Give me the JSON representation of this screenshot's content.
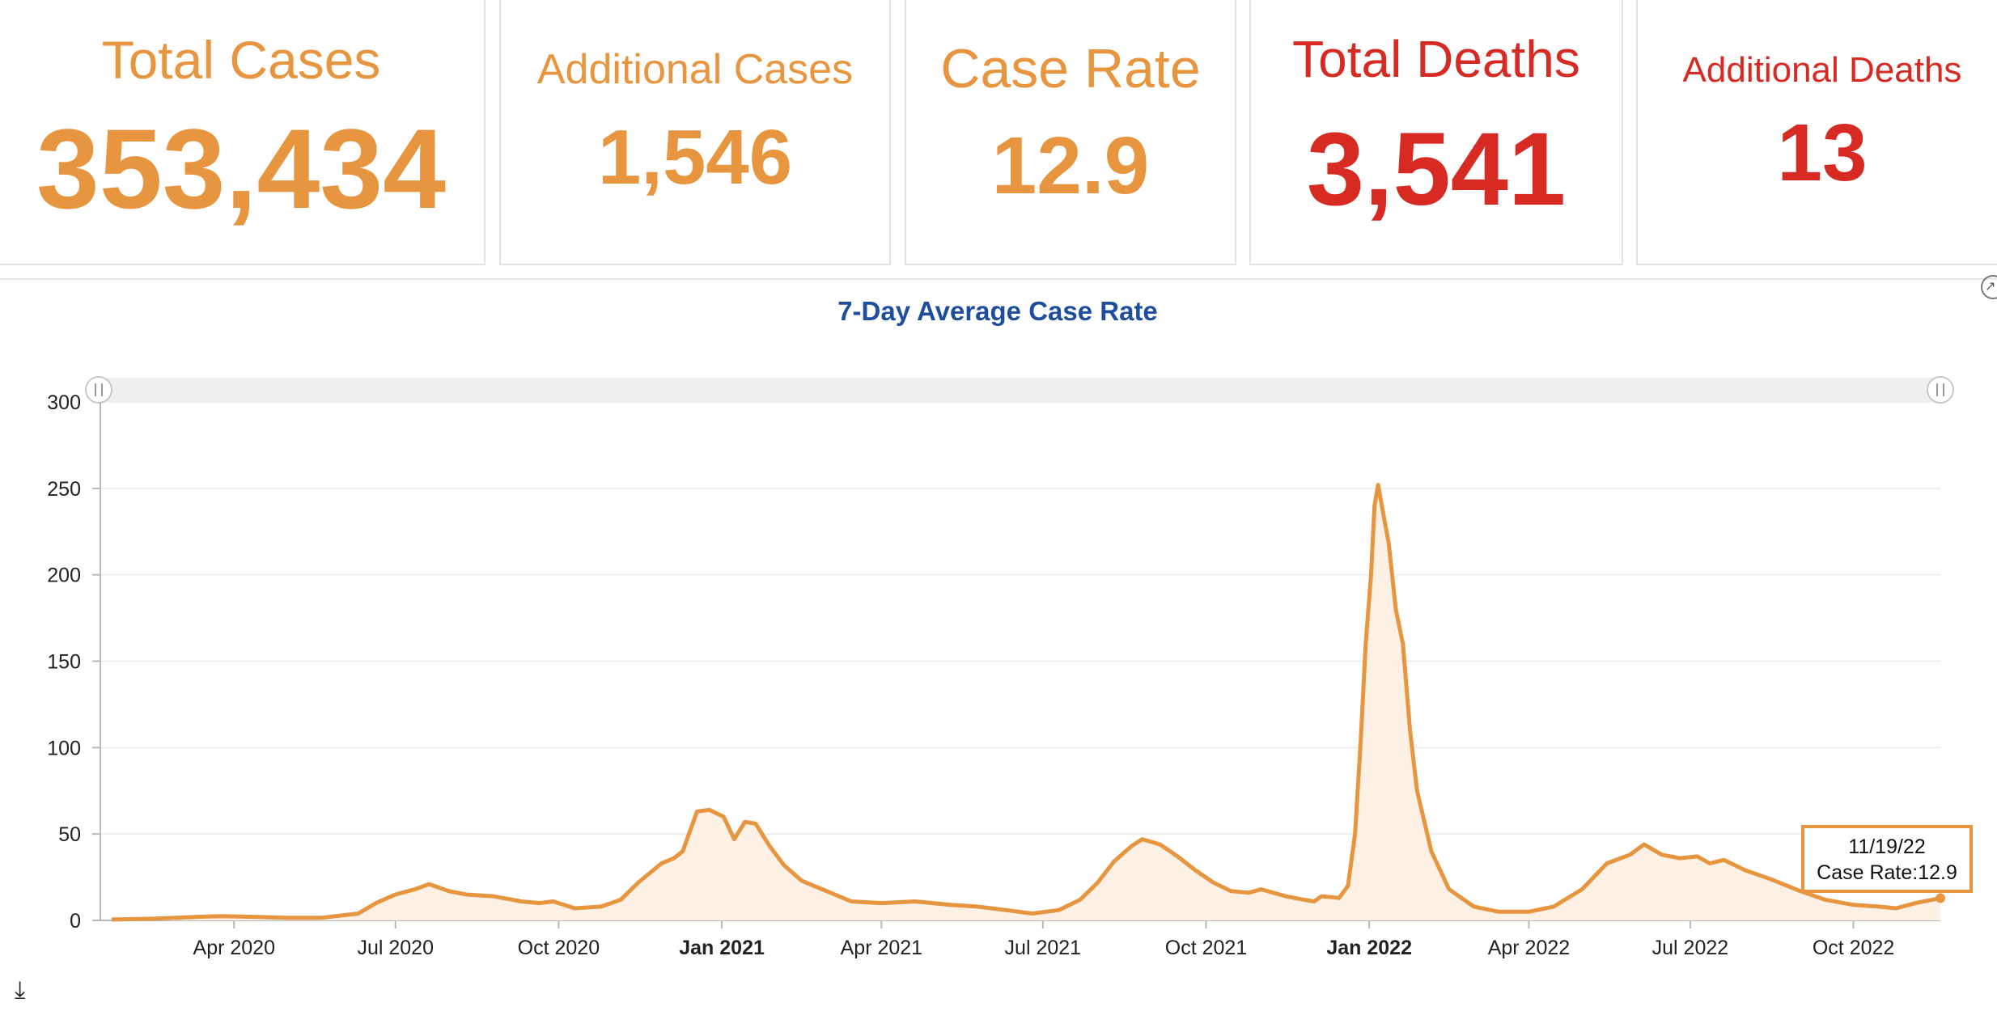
{
  "stats": [
    {
      "title": "Total Cases",
      "value": "353,434"
    },
    {
      "title": "Additional Cases",
      "value": "1,546"
    },
    {
      "title": "Case Rate",
      "value": "12.9"
    },
    {
      "title": "Total Deaths",
      "value": "3,541"
    },
    {
      "title": "Additional Deaths",
      "value": "13"
    }
  ],
  "colors": {
    "case_orange": "#e8953f",
    "death_red": "#d62a22",
    "chart_title_blue": "#1f4e9c",
    "area_fill": "#fdf1e6"
  },
  "icons": {
    "expand": "expand-icon",
    "download": "download-icon",
    "handle": "range-handle-icon"
  },
  "chart_data": {
    "type": "area",
    "title": "7-Day Average Case Rate",
    "xlabel": "",
    "ylabel": "",
    "ylim": [
      0,
      300
    ],
    "yticks": [
      0,
      50,
      100,
      150,
      200,
      250,
      300
    ],
    "x_range": [
      "2020-01-23",
      "2022-11-19"
    ],
    "xticks": [
      {
        "date": "2020-04-01",
        "label": "Apr 2020",
        "bold": false
      },
      {
        "date": "2020-07-01",
        "label": "Jul 2020",
        "bold": false
      },
      {
        "date": "2020-10-01",
        "label": "Oct 2020",
        "bold": false
      },
      {
        "date": "2021-01-01",
        "label": "Jan 2021",
        "bold": true
      },
      {
        "date": "2021-04-01",
        "label": "Apr 2021",
        "bold": false
      },
      {
        "date": "2021-07-01",
        "label": "Jul 2021",
        "bold": false
      },
      {
        "date": "2021-10-01",
        "label": "Oct 2021",
        "bold": false
      },
      {
        "date": "2022-01-01",
        "label": "Jan 2022",
        "bold": true
      },
      {
        "date": "2022-04-01",
        "label": "Apr 2022",
        "bold": false
      },
      {
        "date": "2022-07-01",
        "label": "Jul 2022",
        "bold": false
      },
      {
        "date": "2022-10-01",
        "label": "Oct 2022",
        "bold": false
      }
    ],
    "grid": true,
    "legend": "none",
    "series": [
      {
        "points": [
          [
            "2020-01-23",
            0.5
          ],
          [
            "2020-02-15",
            1
          ],
          [
            "2020-03-10",
            2
          ],
          [
            "2020-03-25",
            2.5
          ],
          [
            "2020-04-15",
            2
          ],
          [
            "2020-05-01",
            1.5
          ],
          [
            "2020-05-20",
            1.5
          ],
          [
            "2020-06-10",
            4
          ],
          [
            "2020-06-20",
            10
          ],
          [
            "2020-07-01",
            15
          ],
          [
            "2020-07-12",
            18
          ],
          [
            "2020-07-20",
            21
          ],
          [
            "2020-07-31",
            17
          ],
          [
            "2020-08-10",
            15
          ],
          [
            "2020-08-25",
            14
          ],
          [
            "2020-09-10",
            11
          ],
          [
            "2020-09-20",
            10
          ],
          [
            "2020-09-28",
            11
          ],
          [
            "2020-10-10",
            7
          ],
          [
            "2020-10-25",
            8
          ],
          [
            "2020-11-05",
            12
          ],
          [
            "2020-11-15",
            22
          ],
          [
            "2020-11-28",
            33
          ],
          [
            "2020-12-05",
            36
          ],
          [
            "2020-12-10",
            40
          ],
          [
            "2020-12-18",
            63
          ],
          [
            "2020-12-25",
            64
          ],
          [
            "2021-01-02",
            60
          ],
          [
            "2021-01-08",
            47
          ],
          [
            "2021-01-14",
            57
          ],
          [
            "2021-01-20",
            56
          ],
          [
            "2021-01-28",
            43
          ],
          [
            "2021-02-05",
            32
          ],
          [
            "2021-02-15",
            23
          ],
          [
            "2021-03-01",
            17
          ],
          [
            "2021-03-15",
            11
          ],
          [
            "2021-04-01",
            10
          ],
          [
            "2021-04-20",
            11
          ],
          [
            "2021-05-10",
            9
          ],
          [
            "2021-05-25",
            8
          ],
          [
            "2021-06-10",
            6
          ],
          [
            "2021-06-25",
            4
          ],
          [
            "2021-07-10",
            6
          ],
          [
            "2021-07-22",
            12
          ],
          [
            "2021-08-01",
            22
          ],
          [
            "2021-08-10",
            34
          ],
          [
            "2021-08-20",
            43
          ],
          [
            "2021-08-26",
            47
          ],
          [
            "2021-09-05",
            44
          ],
          [
            "2021-09-15",
            37
          ],
          [
            "2021-09-25",
            29
          ],
          [
            "2021-10-05",
            22
          ],
          [
            "2021-10-15",
            17
          ],
          [
            "2021-10-25",
            16
          ],
          [
            "2021-11-01",
            18
          ],
          [
            "2021-11-15",
            14
          ],
          [
            "2021-11-25",
            12
          ],
          [
            "2021-12-01",
            11
          ],
          [
            "2021-12-05",
            14
          ],
          [
            "2021-12-15",
            13
          ],
          [
            "2021-12-20",
            20
          ],
          [
            "2021-12-24",
            50
          ],
          [
            "2021-12-27",
            100
          ],
          [
            "2021-12-30",
            160
          ],
          [
            "2022-01-02",
            200
          ],
          [
            "2022-01-04",
            240
          ],
          [
            "2022-01-06",
            252
          ],
          [
            "2022-01-09",
            235
          ],
          [
            "2022-01-12",
            218
          ],
          [
            "2022-01-16",
            180
          ],
          [
            "2022-01-20",
            160
          ],
          [
            "2022-01-24",
            110
          ],
          [
            "2022-01-28",
            75
          ],
          [
            "2022-02-05",
            40
          ],
          [
            "2022-02-15",
            18
          ],
          [
            "2022-03-01",
            8
          ],
          [
            "2022-03-15",
            5
          ],
          [
            "2022-04-01",
            5
          ],
          [
            "2022-04-15",
            8
          ],
          [
            "2022-05-01",
            18
          ],
          [
            "2022-05-15",
            33
          ],
          [
            "2022-05-28",
            38
          ],
          [
            "2022-06-05",
            44
          ],
          [
            "2022-06-15",
            38
          ],
          [
            "2022-06-25",
            36
          ],
          [
            "2022-07-05",
            37
          ],
          [
            "2022-07-12",
            33
          ],
          [
            "2022-07-20",
            35
          ],
          [
            "2022-08-01",
            29
          ],
          [
            "2022-08-15",
            24
          ],
          [
            "2022-09-01",
            17
          ],
          [
            "2022-09-15",
            12
          ],
          [
            "2022-10-01",
            9
          ],
          [
            "2022-10-15",
            8
          ],
          [
            "2022-10-25",
            7
          ],
          [
            "2022-11-05",
            10
          ],
          [
            "2022-11-19",
            12.9
          ]
        ]
      }
    ],
    "tooltip": {
      "date": "11/19/22",
      "label": "Case Rate:12.9"
    }
  }
}
